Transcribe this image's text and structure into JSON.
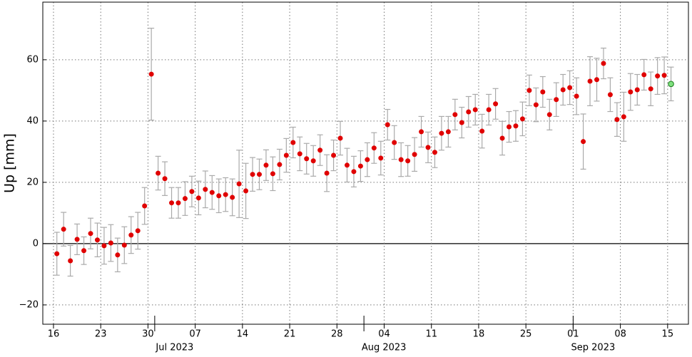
{
  "chart_data": {
    "type": "errorbar-scatter",
    "ylabel": "Up [mm]",
    "ylim": [
      -26.3,
      78.8
    ],
    "yticks": [
      {
        "value": -20,
        "label": "−20"
      },
      0,
      20,
      40,
      60
    ],
    "xlim": [
      "2023-06-14T10:00",
      "2023-09-18T02:00"
    ],
    "xticks": [
      {
        "value": "2023-06-16",
        "label": "16"
      },
      {
        "value": "2023-06-23",
        "label": "23"
      },
      {
        "value": "2023-06-30",
        "label": "30"
      },
      {
        "value": "2023-07-07",
        "label": "07"
      },
      {
        "value": "2023-07-14",
        "label": "14"
      },
      {
        "value": "2023-07-21",
        "label": "21"
      },
      {
        "value": "2023-07-28",
        "label": "28"
      },
      {
        "value": "2023-08-04",
        "label": "04"
      },
      {
        "value": "2023-08-11",
        "label": "11"
      },
      {
        "value": "2023-08-18",
        "label": "18"
      },
      {
        "value": "2023-08-25",
        "label": "25"
      },
      {
        "value": "2023-09-01",
        "label": "01"
      },
      {
        "value": "2023-09-08",
        "label": "08"
      },
      {
        "value": "2023-09-15",
        "label": "15"
      }
    ],
    "month_ticks": [
      {
        "value": "2023-07-01",
        "label": "Jul 2023"
      },
      {
        "value": "2023-08-01",
        "label": "Aug 2023"
      },
      {
        "value": "2023-09-01",
        "label": "Sep 2023"
      }
    ],
    "grid": true,
    "series": [
      {
        "color": "#e00000",
        "edge": "#e00000",
        "x": [
          "2023-06-16",
          "2023-06-17",
          "2023-06-18",
          "2023-06-19",
          "2023-06-20",
          "2023-06-21",
          "2023-06-22",
          "2023-06-23",
          "2023-06-24",
          "2023-06-25",
          "2023-06-26",
          "2023-06-27",
          "2023-06-28",
          "2023-06-29",
          "2023-06-30",
          "2023-07-01",
          "2023-07-02",
          "2023-07-03",
          "2023-07-04",
          "2023-07-05",
          "2023-07-06",
          "2023-07-07",
          "2023-07-08",
          "2023-07-09",
          "2023-07-10",
          "2023-07-11",
          "2023-07-12",
          "2023-07-13",
          "2023-07-14",
          "2023-07-15",
          "2023-07-16",
          "2023-07-17",
          "2023-07-18",
          "2023-07-19",
          "2023-07-20",
          "2023-07-21",
          "2023-07-22",
          "2023-07-23",
          "2023-07-24",
          "2023-07-25",
          "2023-07-26",
          "2023-07-27",
          "2023-07-28",
          "2023-07-29",
          "2023-07-30",
          "2023-07-31",
          "2023-08-01",
          "2023-08-02",
          "2023-08-03",
          "2023-08-04",
          "2023-08-05",
          "2023-08-06",
          "2023-08-07",
          "2023-08-08",
          "2023-08-09",
          "2023-08-10",
          "2023-08-11",
          "2023-08-12",
          "2023-08-13",
          "2023-08-14",
          "2023-08-15",
          "2023-08-16",
          "2023-08-17",
          "2023-08-18",
          "2023-08-19",
          "2023-08-20",
          "2023-08-21",
          "2023-08-22",
          "2023-08-23",
          "2023-08-24",
          "2023-08-25",
          "2023-08-26",
          "2023-08-27",
          "2023-08-28",
          "2023-08-29",
          "2023-08-30",
          "2023-08-31",
          "2023-09-01",
          "2023-09-02",
          "2023-09-03",
          "2023-09-04",
          "2023-09-05",
          "2023-09-06",
          "2023-09-07",
          "2023-09-08",
          "2023-09-09",
          "2023-09-10",
          "2023-09-11",
          "2023-09-12",
          "2023-09-13",
          "2023-09-14"
        ],
        "values": [
          -3.3,
          4.7,
          -5.6,
          1.4,
          -2.3,
          3.3,
          1.2,
          -0.7,
          0.2,
          -3.7,
          -0.5,
          2.8,
          4.2,
          12.3,
          55.3,
          23.0,
          21.2,
          13.3,
          13.3,
          14.7,
          17.0,
          14.9,
          17.7,
          16.7,
          15.6,
          16.0,
          15.1,
          19.5,
          17.2,
          22.6,
          22.6,
          25.6,
          22.8,
          25.8,
          28.8,
          33.0,
          29.3,
          27.7,
          27.0,
          30.5,
          23.0,
          28.8,
          34.4,
          25.6,
          23.5,
          25.3,
          27.4,
          31.2,
          27.9,
          38.8,
          33.0,
          27.4,
          27.0,
          29.1,
          36.5,
          31.4,
          29.8,
          36.0,
          36.5,
          42.1,
          39.5,
          43.0,
          43.7,
          36.7,
          43.7,
          45.6,
          34.4,
          38.1,
          38.4,
          40.7,
          50.0,
          45.3,
          49.5,
          42.1,
          47.0,
          50.2,
          50.9,
          48.1,
          33.3,
          53.0,
          53.5,
          58.8,
          48.6,
          40.5,
          41.4,
          49.5,
          50.2,
          55.1,
          50.5,
          54.7,
          54.9
        ],
        "errors": [
          7,
          5.5,
          5,
          5,
          4.5,
          5,
          5.5,
          6,
          6,
          5.5,
          6,
          6,
          6,
          6,
          15,
          5.5,
          5.5,
          5,
          5,
          5.5,
          5,
          5.5,
          6,
          5.5,
          5.5,
          5.5,
          6,
          11,
          9,
          5.5,
          5,
          5,
          5.5,
          5,
          5.5,
          5,
          5.5,
          5,
          5,
          5,
          6,
          5,
          5.5,
          5.5,
          5,
          5,
          5.5,
          5,
          5.5,
          5,
          5.5,
          5.5,
          5,
          5.5,
          5,
          5,
          5,
          5.5,
          5,
          5,
          5,
          5,
          5,
          5.5,
          5,
          5,
          5.5,
          5,
          5,
          5.5,
          5,
          5.5,
          5,
          5,
          5.5,
          5,
          5.5,
          6,
          9,
          8,
          7,
          5,
          5.5,
          5.5,
          8,
          6,
          5,
          5,
          5.5,
          6,
          6
        ]
      },
      {
        "color": "#7fe07f",
        "edge": "#1a7a1a",
        "x": [
          "2023-09-15"
        ],
        "values": [
          52.1
        ],
        "errors": [
          5.5
        ]
      }
    ]
  }
}
